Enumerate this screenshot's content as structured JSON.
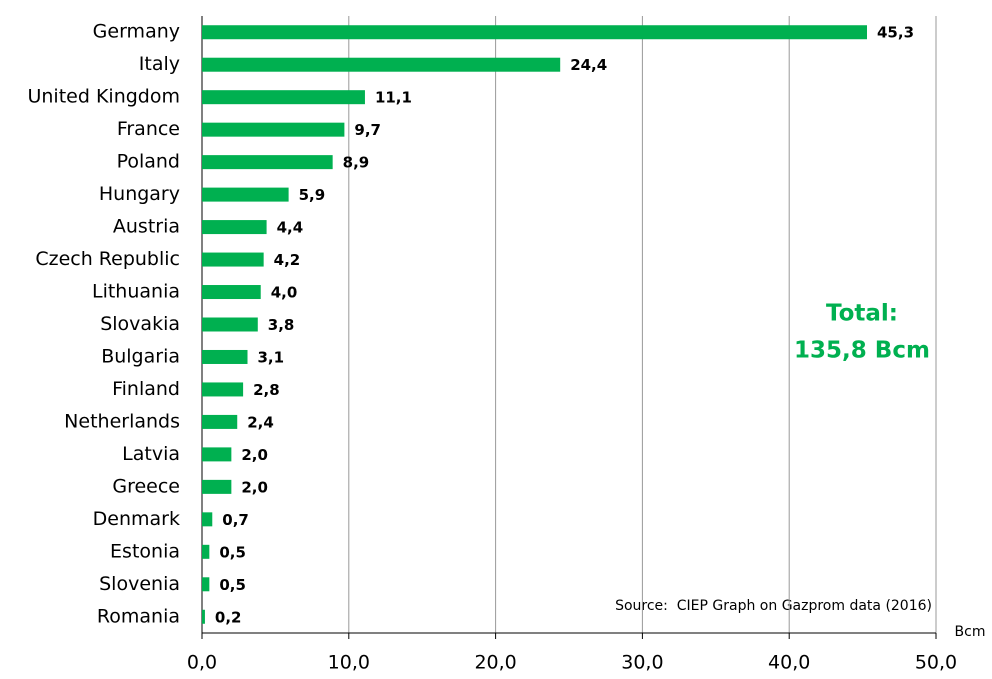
{
  "chart_data": {
    "type": "bar",
    "orientation": "horizontal",
    "categories": [
      "Germany",
      "Italy",
      "United Kingdom",
      "France",
      "Poland",
      "Hungary",
      "Austria",
      "Czech Republic",
      "Lithuania",
      "Slovakia ",
      "Bulgaria",
      "Finland",
      "Netherlands",
      "Latvia",
      "Greece",
      "Denmark",
      "Estonia",
      "Slovenia",
      "Romania"
    ],
    "values": [
      45.3,
      24.4,
      11.1,
      9.7,
      8.9,
      5.9,
      4.4,
      4.2,
      4.0,
      3.8,
      3.1,
      2.8,
      2.4,
      2.0,
      2.0,
      0.7,
      0.5,
      0.5,
      0.2
    ],
    "value_labels": [
      "45,3",
      "24,4",
      "11,1",
      "9,7",
      "8,9",
      "5,9",
      "4,4",
      "4,2",
      "4,0",
      "3,8",
      "3,1",
      "2,8",
      "2,4",
      "2,0",
      "2,0",
      "0,7",
      "0,5",
      "0,5",
      "0,2"
    ],
    "color": "#00b050",
    "xlim": [
      0,
      50
    ],
    "xticks": [
      {
        "value": 0,
        "label": "0,0"
      },
      {
        "value": 10,
        "label": "10,0"
      },
      {
        "value": 20,
        "label": "20,0"
      },
      {
        "value": 30,
        "label": "30,0"
      },
      {
        "value": 40,
        "label": "40,0"
      },
      {
        "value": 50,
        "label": "50,0"
      }
    ],
    "x_label": "Bcm",
    "grid": true,
    "annotations": [
      "Total:",
      "135,8 Bcm",
      "Source:  CIEP Graph on Gazprom data (2016)"
    ]
  }
}
